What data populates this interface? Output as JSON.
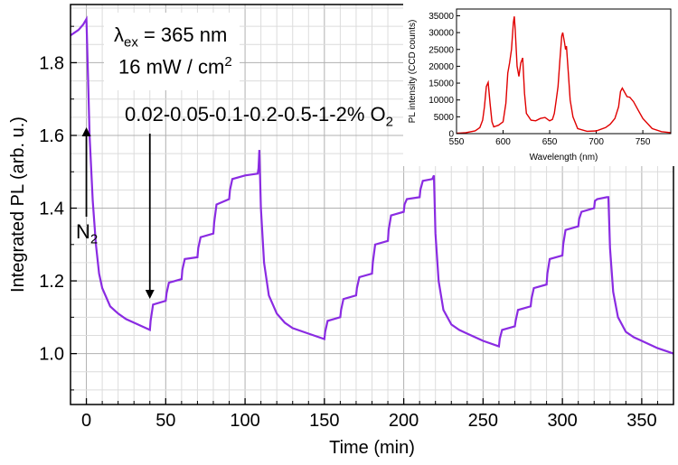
{
  "chart_data": [
    {
      "type": "line",
      "xlabel": "Time (min)",
      "ylabel": "Integrated PL (arb. u.)",
      "xlim": [
        -10,
        370
      ],
      "ylim": [
        0.86,
        1.96
      ],
      "xticks": [
        "0",
        "50",
        "100",
        "150",
        "200",
        "250",
        "300",
        "350"
      ],
      "xtick_values": [
        0,
        50,
        100,
        150,
        200,
        250,
        300,
        350
      ],
      "yticks": [
        "1.0",
        "1.2",
        "1.4",
        "1.6",
        "1.8"
      ],
      "ytick_values": [
        1.0,
        1.2,
        1.4,
        1.6,
        1.8
      ],
      "grid": true,
      "line_color": "#8a2be2",
      "annotations": {
        "excitation_symbol": "λ",
        "excitation_sub": "ex",
        "excitation_value": " = 365 nm",
        "intensity_value": "16 mW / cm",
        "intensity_sup": "2",
        "o2_sequence": "0.02-0.05-0.1-0.2-0.5-1-2% O",
        "o2_sub": "2",
        "n2_label": "N",
        "n2_sub": "2"
      },
      "series": [
        {
          "x": [
            -10,
            -5,
            -2,
            0,
            0.5,
            2,
            4,
            6,
            8,
            10,
            15,
            20,
            25,
            30,
            35,
            40,
            40.5,
            42,
            50,
            50.5,
            52,
            60,
            60.5,
            62,
            70,
            70.5,
            72,
            80,
            80.5,
            82,
            90,
            90.5,
            92,
            100,
            108,
            108.5,
            109,
            110,
            112,
            115,
            120,
            125,
            130,
            140,
            150,
            150.5,
            152,
            160,
            160.5,
            162,
            170,
            170.5,
            172,
            180,
            180.5,
            182,
            190,
            190.5,
            192,
            200,
            200.5,
            202,
            210,
            210.5,
            212,
            218,
            218.5,
            219,
            220,
            222,
            225,
            230,
            235,
            240,
            250,
            260,
            260.5,
            262,
            270,
            270.5,
            272,
            280,
            280.5,
            282,
            290,
            290.5,
            292,
            300,
            300.5,
            302,
            310,
            310.5,
            312,
            320,
            320.5,
            322,
            328,
            328.5,
            329,
            330,
            332,
            335,
            340,
            345,
            350,
            360,
            370
          ],
          "y": [
            1.875,
            1.89,
            1.905,
            1.92,
            1.85,
            1.6,
            1.42,
            1.3,
            1.22,
            1.18,
            1.13,
            1.11,
            1.095,
            1.085,
            1.075,
            1.065,
            1.09,
            1.135,
            1.145,
            1.165,
            1.195,
            1.205,
            1.23,
            1.26,
            1.265,
            1.29,
            1.32,
            1.33,
            1.36,
            1.41,
            1.425,
            1.45,
            1.48,
            1.49,
            1.495,
            1.51,
            1.56,
            1.4,
            1.25,
            1.16,
            1.11,
            1.085,
            1.07,
            1.055,
            1.04,
            1.06,
            1.09,
            1.1,
            1.12,
            1.15,
            1.16,
            1.18,
            1.21,
            1.22,
            1.25,
            1.3,
            1.31,
            1.34,
            1.38,
            1.39,
            1.41,
            1.425,
            1.43,
            1.45,
            1.475,
            1.48,
            1.485,
            1.49,
            1.33,
            1.2,
            1.12,
            1.08,
            1.065,
            1.055,
            1.035,
            1.02,
            1.04,
            1.065,
            1.075,
            1.09,
            1.12,
            1.13,
            1.15,
            1.18,
            1.19,
            1.22,
            1.26,
            1.27,
            1.3,
            1.34,
            1.35,
            1.37,
            1.39,
            1.4,
            1.42,
            1.425,
            1.43,
            1.43,
            1.43,
            1.29,
            1.17,
            1.1,
            1.06,
            1.045,
            1.035,
            1.015,
            1.0
          ]
        }
      ]
    },
    {
      "type": "line",
      "xlabel": "Wavelength (nm)",
      "ylabel": "PL intensity (CCD counts)",
      "xlim": [
        550,
        780
      ],
      "ylim": [
        0,
        37000
      ],
      "xticks": [
        "550",
        "600",
        "650",
        "700",
        "750"
      ],
      "xtick_values": [
        550,
        600,
        650,
        700,
        750
      ],
      "yticks": [
        "0",
        "5000",
        "10000",
        "15000",
        "20000",
        "25000",
        "30000",
        "35000"
      ],
      "ytick_values": [
        0,
        5000,
        10000,
        15000,
        20000,
        25000,
        30000,
        35000
      ],
      "grid": false,
      "line_color": "#e00000",
      "series": [
        {
          "x": [
            550,
            560,
            570,
            575,
            578,
            580,
            582,
            584,
            586,
            588,
            590,
            595,
            600,
            603,
            605,
            607,
            609,
            611,
            612,
            613,
            615,
            617,
            619,
            621,
            623,
            625,
            630,
            635,
            640,
            645,
            650,
            653,
            655,
            657,
            659,
            661,
            663,
            664,
            666,
            667,
            668,
            670,
            672,
            675,
            680,
            690,
            700,
            710,
            715,
            720,
            724,
            726,
            728,
            730,
            733,
            736,
            740,
            745,
            750,
            760,
            770,
            780
          ],
          "y": [
            100,
            300,
            800,
            1800,
            4000,
            8000,
            14000,
            15200,
            9000,
            3500,
            2000,
            2500,
            3500,
            9000,
            18000,
            21000,
            25000,
            33000,
            34800,
            31000,
            20000,
            17000,
            21000,
            22500,
            12000,
            6000,
            4000,
            3800,
            4500,
            4800,
            3800,
            4200,
            6000,
            10000,
            14000,
            22000,
            29000,
            30000,
            27000,
            25000,
            26000,
            18000,
            10000,
            5000,
            1500,
            700,
            800,
            1800,
            2800,
            4500,
            8000,
            12500,
            13500,
            12500,
            11000,
            10800,
            9500,
            7000,
            4500,
            1500,
            600,
            300
          ]
        }
      ]
    }
  ]
}
